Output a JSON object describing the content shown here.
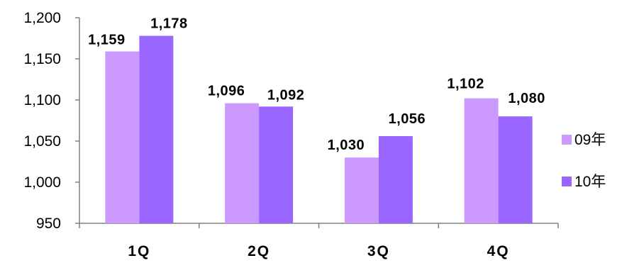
{
  "chart_data": {
    "type": "bar",
    "categories": [
      "1Q",
      "2Q",
      "3Q",
      "4Q"
    ],
    "series": [
      {
        "name": "09年",
        "values": [
          1159,
          1096,
          1030,
          1102
        ],
        "labels": [
          "1,159",
          "1,096",
          "1,030",
          "1,102"
        ],
        "color": "#CC99FF"
      },
      {
        "name": "10年",
        "values": [
          1178,
          1092,
          1056,
          1080
        ],
        "labels": [
          "1,178",
          "1,092",
          "1,056",
          "1,080"
        ],
        "color": "#9966FF"
      }
    ],
    "ylim": [
      950,
      1200
    ],
    "yticks": [
      950,
      1000,
      1050,
      1100,
      1150,
      1200
    ],
    "ytick_labels": [
      "950",
      "1,000",
      "1,050",
      "1,100",
      "1,150",
      "1,200"
    ],
    "title": "",
    "xlabel": "",
    "ylabel": "",
    "grid": false,
    "legend_position": "right"
  }
}
